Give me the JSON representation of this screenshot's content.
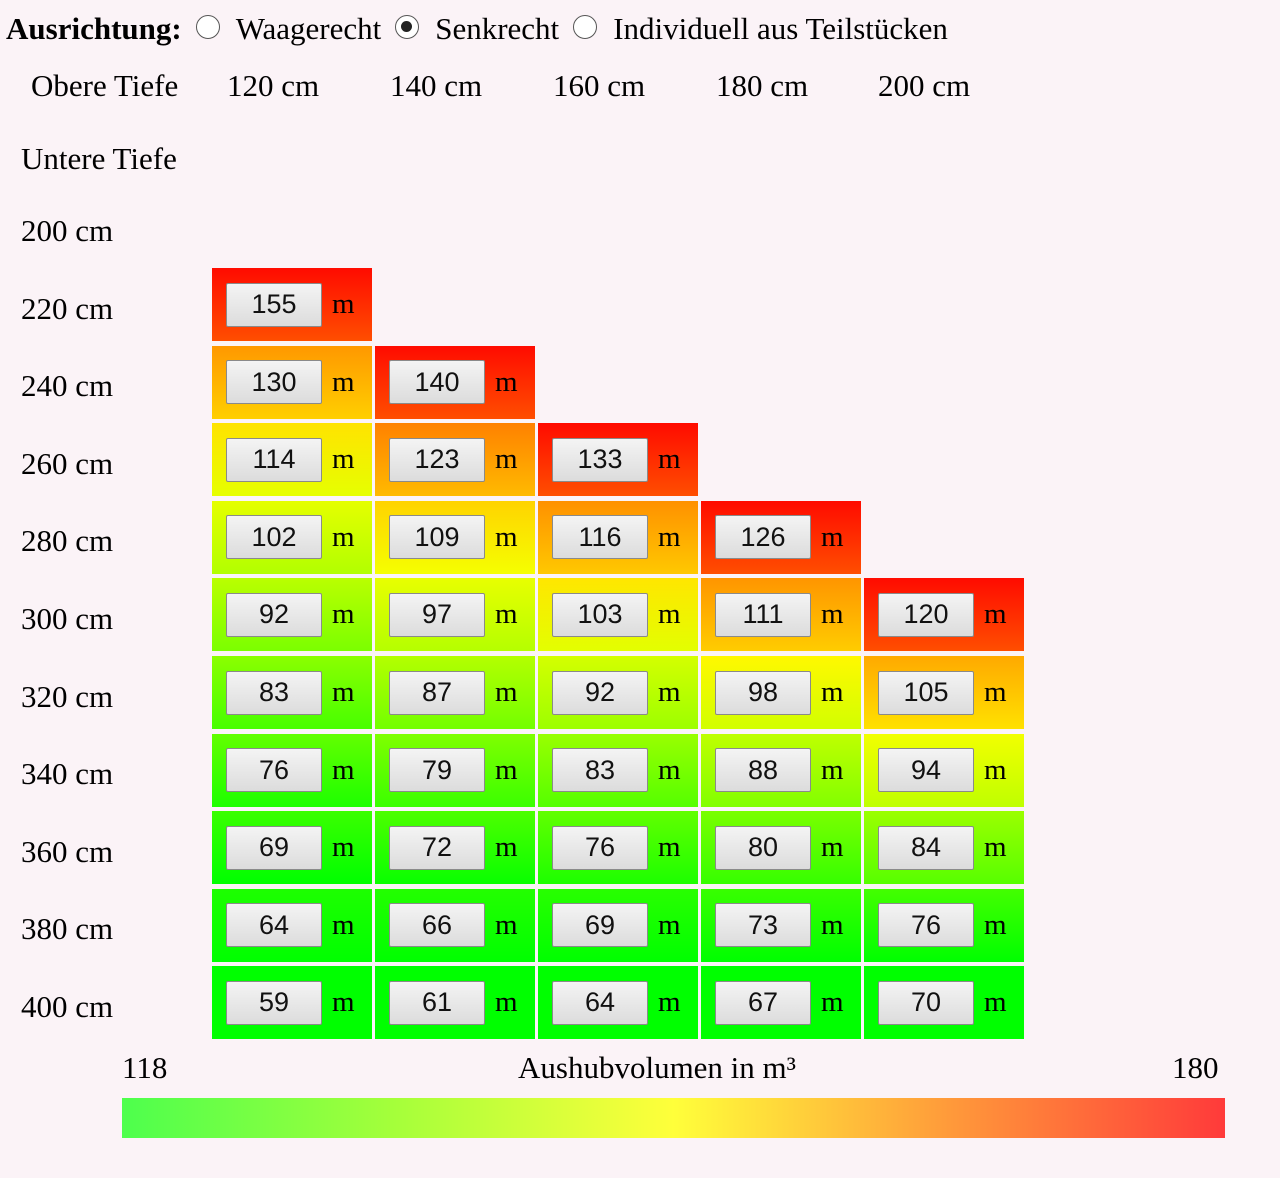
{
  "orientation": {
    "label": "Ausrichtung:",
    "options": [
      {
        "label": "Waagerecht",
        "checked": false
      },
      {
        "label": "Senkrecht",
        "checked": true
      },
      {
        "label": "Individuell aus Teilstücken",
        "checked": false
      }
    ]
  },
  "top_depth": {
    "label": "Obere Tiefe",
    "columns": [
      "120 cm",
      "140 cm",
      "160 cm",
      "180 cm",
      "200 cm"
    ]
  },
  "bottom_depth": {
    "label": "Untere Tiefe",
    "rows": [
      "200 cm",
      "220 cm",
      "240 cm",
      "260 cm",
      "280 cm",
      "300 cm",
      "320 cm",
      "340 cm",
      "360 cm",
      "380 cm",
      "400 cm"
    ]
  },
  "unit": "m",
  "grid": [
    [
      null,
      null,
      null,
      null,
      null
    ],
    [
      155,
      null,
      null,
      null,
      null
    ],
    [
      130,
      140,
      null,
      null,
      null
    ],
    [
      114,
      123,
      133,
      null,
      null
    ],
    [
      102,
      109,
      116,
      126,
      null
    ],
    [
      92,
      97,
      103,
      111,
      120
    ],
    [
      83,
      87,
      92,
      98,
      105
    ],
    [
      76,
      79,
      83,
      88,
      94
    ],
    [
      69,
      72,
      76,
      80,
      84
    ],
    [
      64,
      66,
      69,
      73,
      76
    ],
    [
      59,
      61,
      64,
      67,
      70
    ]
  ],
  "legend": {
    "min_label": "118",
    "title": "Aushubvolumen in m³",
    "max_label": "180"
  }
}
